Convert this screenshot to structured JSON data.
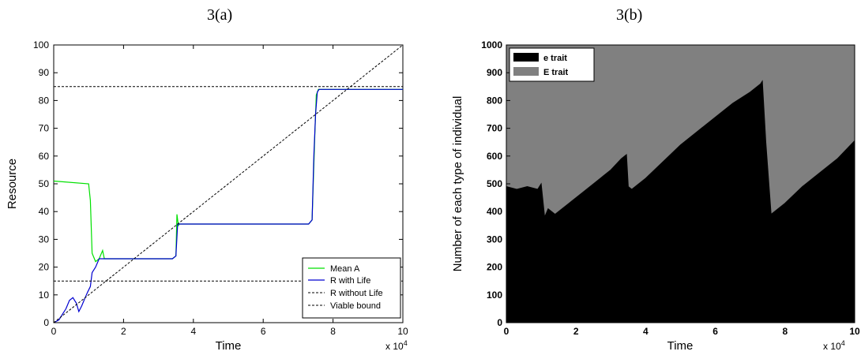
{
  "panels": {
    "a_title": "3(a)",
    "b_title": "3(b)"
  },
  "chart_data": [
    {
      "type": "line",
      "title": "3(a)",
      "xlabel": "Time",
      "ylabel": "Resource",
      "x_multiplier": "x 10^4",
      "xlim": [
        0,
        10
      ],
      "ylim": [
        0,
        100
      ],
      "x_ticks": [
        "0",
        "2",
        "4",
        "6",
        "8",
        "10"
      ],
      "y_ticks": [
        "0",
        "10",
        "20",
        "30",
        "40",
        "50",
        "60",
        "70",
        "80",
        "90",
        "100"
      ],
      "grid": false,
      "legend_position": "bottom-right",
      "series": [
        {
          "name": "Mean A",
          "color": "#00e000",
          "x": [
            0,
            1.0,
            1.05,
            1.1,
            1.2,
            1.3,
            1.4,
            1.45,
            1.5,
            3.4,
            3.5,
            3.53,
            3.57,
            3.6,
            7.3,
            7.4,
            7.48,
            7.52,
            7.58,
            7.65,
            7.8,
            10
          ],
          "y": [
            51,
            50,
            44,
            25,
            22,
            23,
            26,
            23,
            23,
            23,
            24,
            39,
            35,
            35.5,
            35.5,
            37,
            68,
            82,
            84,
            84,
            84,
            84
          ]
        },
        {
          "name": "R with Life",
          "color": "#0000d0",
          "x": [
            0,
            0.15,
            0.25,
            0.35,
            0.45,
            0.55,
            0.65,
            0.72,
            0.8,
            0.9,
            0.97,
            1.05,
            1.1,
            1.2,
            1.3,
            1.4,
            3.4,
            3.5,
            3.55,
            7.3,
            7.4,
            7.45,
            7.5,
            7.55,
            7.6,
            7.7,
            10
          ],
          "y": [
            0,
            1,
            3,
            5,
            8,
            9,
            7,
            4,
            6,
            9,
            11,
            13,
            18,
            20,
            23,
            23,
            23,
            24,
            35.5,
            35.5,
            37,
            60,
            75,
            83,
            84,
            84,
            84
          ]
        },
        {
          "name": "R without Life",
          "color": "#000000",
          "dashed": true,
          "x": [
            0,
            10
          ],
          "y": [
            0,
            100
          ]
        },
        {
          "name": "Viable bound",
          "color": "#000000",
          "dashed": true,
          "hlines": [
            15,
            85
          ]
        }
      ]
    },
    {
      "type": "area",
      "title": "3(b)",
      "xlabel": "Time",
      "ylabel": "Number of each type of individual",
      "x_multiplier": "x 10^4",
      "xlim": [
        0,
        10
      ],
      "ylim": [
        0,
        1000
      ],
      "x_ticks": [
        "0",
        "2",
        "4",
        "6",
        "8",
        "10"
      ],
      "y_ticks": [
        "0",
        "100",
        "200",
        "300",
        "400",
        "500",
        "600",
        "700",
        "800",
        "900",
        "1000"
      ],
      "legend_position": "top-left",
      "total": 1000,
      "series": [
        {
          "name": "e trait",
          "color": "#000000",
          "x": [
            0,
            0.3,
            0.6,
            0.9,
            1.0,
            1.05,
            1.1,
            1.2,
            1.4,
            1.8,
            2.2,
            2.6,
            3.0,
            3.3,
            3.45,
            3.5,
            3.6,
            4.0,
            4.5,
            5.0,
            5.5,
            6.0,
            6.5,
            7.0,
            7.3,
            7.35,
            7.45,
            7.6,
            8.0,
            8.5,
            9.0,
            9.5,
            10
          ],
          "y": [
            490,
            480,
            490,
            480,
            500,
            440,
            380,
            410,
            390,
            430,
            470,
            510,
            550,
            590,
            605,
            490,
            480,
            520,
            580,
            640,
            690,
            740,
            790,
            830,
            860,
            870,
            650,
            390,
            430,
            490,
            540,
            590,
            655
          ]
        },
        {
          "name": "E trait",
          "color": "#808080",
          "fills_to_total": true
        }
      ]
    }
  ],
  "legend_a": {
    "mean_a": "Mean A",
    "r_with_life": "R with Life",
    "r_without_life": "R without Life",
    "viable_bound": "Viable bound"
  },
  "legend_b": {
    "e_trait": "e trait",
    "E_trait": "E trait"
  },
  "axes": {
    "a_xlabel": "Time",
    "a_ylabel": "Resource",
    "b_xlabel": "Time",
    "b_ylabel": "Number of each type of individual",
    "multiplier_base": "x 10",
    "multiplier_exp": "4"
  }
}
